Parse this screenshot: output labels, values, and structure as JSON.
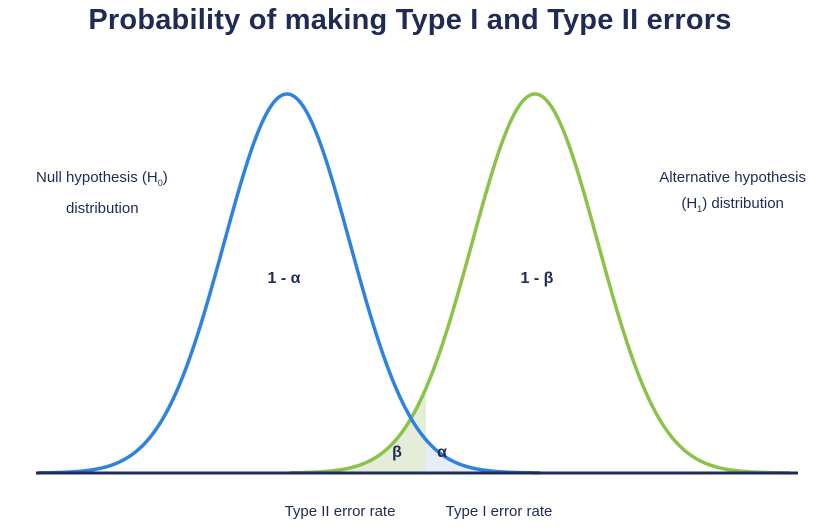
{
  "title": "Probability of making Type I and Type II errors",
  "null_label": {
    "line1": "Null hypothesis (H",
    "sub": "0",
    "line1_end": ")",
    "line2": "distribution"
  },
  "alt_label": {
    "line1": "Alternative hypothesis",
    "line2_start": "(H",
    "sub": "1",
    "line2_end": ") distribution"
  },
  "regions": {
    "one_minus_alpha": "1 - α",
    "one_minus_beta": "1 - β",
    "beta": "β",
    "alpha": "α"
  },
  "bottom": {
    "type2": "Type II error rate",
    "type1": "Type I error rate"
  },
  "colors": {
    "null_curve": "#2f83e0",
    "alt_curve": "#8bc34a",
    "beta_fill": "#e3edd7",
    "alpha_fill": "#e6eef8",
    "axis": "#1f2b55"
  }
}
